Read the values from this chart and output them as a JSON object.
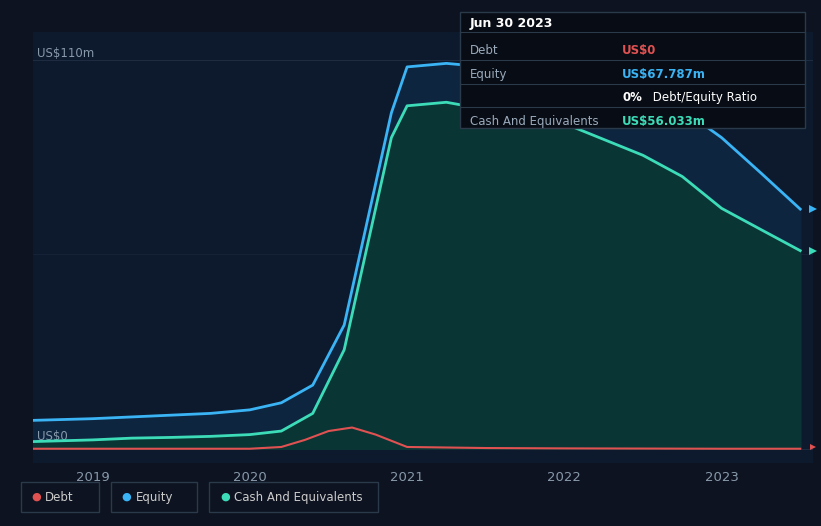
{
  "bg_color": "#0d1320",
  "plot_bg_color": "#0d1a2e",
  "title_y_label": "US$110m",
  "y_zero_label": "US$0",
  "x_ticks": [
    2019,
    2020,
    2021,
    2022,
    2023
  ],
  "colors": {
    "debt": "#e05252",
    "equity": "#3ab4f5",
    "cash": "#3ddcb8"
  },
  "equity_fill": "#0e2540",
  "cash_fill": "#0a3535",
  "grid_color": "#1e2d42",
  "tooltip": {
    "title": "Jun 30 2023",
    "rows": [
      {
        "label": "Debt",
        "value": "US$0",
        "value_color": "#e05252"
      },
      {
        "label": "Equity",
        "value": "US$67.787m",
        "value_color": "#3ab4f5"
      },
      {
        "label": "",
        "value_bold": "0%",
        "value_rest": " Debt/Equity Ratio"
      },
      {
        "label": "Cash And Equivalents",
        "value": "US$56.033m",
        "value_color": "#3ddcb8"
      }
    ]
  },
  "legend_items": [
    {
      "label": "Debt",
      "color": "#e05252"
    },
    {
      "label": "Equity",
      "color": "#3ab4f5"
    },
    {
      "label": "Cash And Equivalents",
      "color": "#3ddcb8"
    }
  ],
  "debt_x": [
    2018.6,
    2019.0,
    2019.5,
    2020.0,
    2020.2,
    2020.35,
    2020.5,
    2020.65,
    2020.8,
    2021.0,
    2021.5,
    2022.0,
    2022.5,
    2023.0,
    2023.5
  ],
  "debt_y": [
    0,
    0,
    0,
    0,
    0.5,
    2.5,
    5,
    6,
    4,
    0.5,
    0.2,
    0.1,
    0.05,
    0,
    0
  ],
  "equity_x": [
    2018.6,
    2019.0,
    2019.25,
    2019.5,
    2019.75,
    2020.0,
    2020.2,
    2020.4,
    2020.6,
    2020.75,
    2020.9,
    2021.0,
    2021.25,
    2021.5,
    2022.0,
    2022.5,
    2022.75,
    2023.0,
    2023.25,
    2023.5
  ],
  "equity_y": [
    8,
    8.5,
    9,
    9.5,
    10,
    11,
    13,
    18,
    35,
    65,
    95,
    108,
    109,
    108,
    105,
    100,
    96,
    88,
    78,
    67.787
  ],
  "cash_x": [
    2018.6,
    2019.0,
    2019.25,
    2019.5,
    2019.75,
    2020.0,
    2020.2,
    2020.4,
    2020.6,
    2020.75,
    2020.9,
    2021.0,
    2021.25,
    2021.5,
    2022.0,
    2022.5,
    2022.75,
    2023.0,
    2023.25,
    2023.5
  ],
  "cash_y": [
    2,
    2.5,
    3,
    3.2,
    3.5,
    4,
    5,
    10,
    28,
    58,
    88,
    97,
    98,
    96,
    92,
    83,
    77,
    68,
    62,
    56.033
  ],
  "xlim": [
    2018.62,
    2023.58
  ],
  "ylim": [
    -4,
    118
  ]
}
